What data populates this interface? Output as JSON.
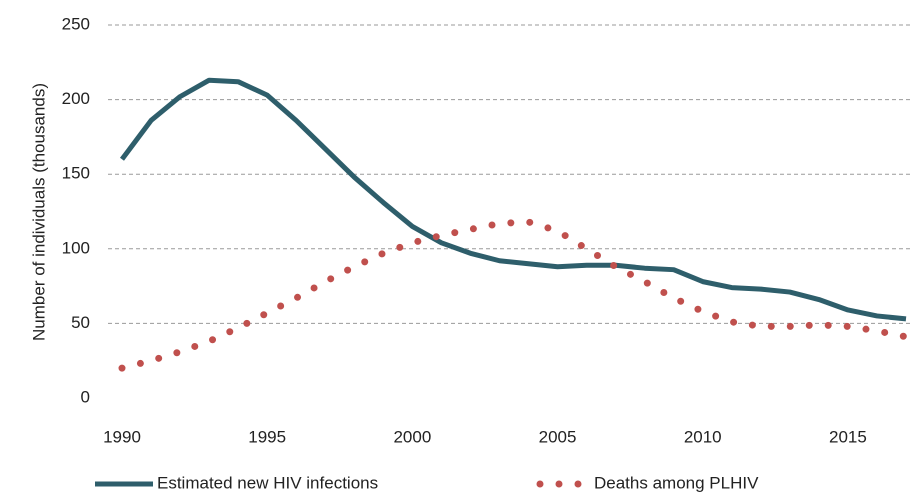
{
  "chart_data": {
    "type": "line",
    "y_label": "Number of individuals (thousands)",
    "x": [
      1990,
      1991,
      1992,
      1993,
      1994,
      1995,
      1996,
      1997,
      1998,
      1999,
      2000,
      2001,
      2002,
      2003,
      2004,
      2005,
      2006,
      2007,
      2008,
      2009,
      2010,
      2011,
      2012,
      2013,
      2014,
      2015,
      2016,
      2017
    ],
    "series": [
      {
        "name": "Estimated new HIV infections",
        "color": "#2e5e6b",
        "style": "solid",
        "values": [
          160,
          186,
          202,
          213,
          212,
          203,
          186,
          167,
          148,
          131,
          115,
          104,
          97,
          92,
          90,
          88,
          89,
          89,
          87,
          86,
          78,
          74,
          73,
          71,
          66,
          59,
          55,
          53
        ]
      },
      {
        "name": "Deaths among PLHIV",
        "color": "#c0504d",
        "style": "dotted",
        "values": [
          20,
          25,
          31,
          38,
          47,
          57,
          67,
          78,
          88,
          97,
          104,
          109,
          113,
          117,
          118,
          112,
          100,
          88,
          78,
          67,
          58,
          51,
          48,
          48,
          49,
          48,
          45,
          41
        ]
      }
    ],
    "xlim": [
      1990,
      2017
    ],
    "xticks": [
      1990,
      1995,
      2000,
      2005,
      2010,
      2015
    ],
    "ylim": [
      0,
      250
    ],
    "yticks": [
      0,
      50,
      100,
      150,
      200,
      250
    ],
    "grid": true,
    "legend": "bottom"
  }
}
